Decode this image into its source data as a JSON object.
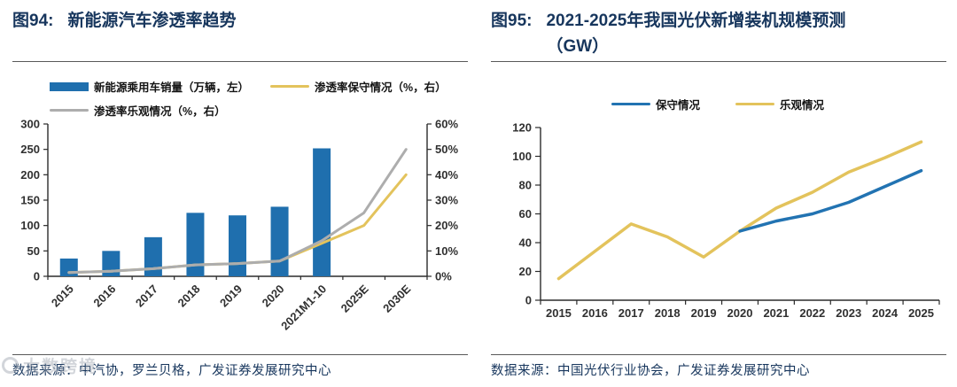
{
  "watermark": {
    "text": "大数跨境"
  },
  "figures": [
    {
      "label": "图94:",
      "title": "新能源汽车渗透率趋势",
      "source": "数据来源：中汽协，罗兰贝格，广发证券发展研究中心"
    },
    {
      "label": "图95:",
      "title": "2021-2025年我国光伏新增装机规模预测（GW）",
      "source": "数据来源：中国光伏行业协会，广发证券发展研究中心"
    }
  ],
  "chart_data": [
    {
      "type": "bar+line",
      "title": "新能源汽车渗透率趋势",
      "categories": [
        "2015",
        "2016",
        "2017",
        "2018",
        "2019",
        "2020",
        "2021M1-10",
        "2025E",
        "2030E"
      ],
      "bar_series": {
        "name": "新能源乘用车销量（万辆，左）",
        "axis": "left",
        "color": "#1f6fae",
        "values": [
          35,
          50,
          77,
          125,
          120,
          137,
          252,
          null,
          null
        ]
      },
      "line_series": [
        {
          "name": "渗透率保守情况（%，右）",
          "axis": "right",
          "color": "#e3c35c",
          "values": [
            1.5,
            2,
            3,
            4.5,
            5,
            6,
            13,
            20,
            40
          ]
        },
        {
          "name": "渗透率乐观情况（%，右）",
          "axis": "right",
          "color": "#adadad",
          "values": [
            1.5,
            2,
            3,
            4.5,
            5,
            6,
            14,
            25,
            50
          ]
        }
      ],
      "left_axis": {
        "min": 0,
        "max": 300,
        "ticks": [
          0,
          50,
          100,
          150,
          200,
          250,
          300
        ]
      },
      "right_axis": {
        "min": 0,
        "max": 60,
        "ticks": [
          "0%",
          "10%",
          "20%",
          "30%",
          "40%",
          "50%",
          "60%"
        ]
      },
      "legend_position": "top-left",
      "grid": false
    },
    {
      "type": "line",
      "title": "2021-2025年我国光伏新增装机规模预测（GW）",
      "categories": [
        "2015",
        "2016",
        "2017",
        "2018",
        "2019",
        "2020",
        "2021",
        "2022",
        "2023",
        "2024",
        "2025"
      ],
      "series": [
        {
          "name": "乐观情况",
          "color": "#e3c35c",
          "values": [
            15,
            34,
            53,
            44,
            30,
            48,
            64,
            75,
            89,
            99,
            110
          ]
        },
        {
          "name": "保守情况",
          "color": "#2273b2",
          "values": [
            null,
            null,
            null,
            null,
            null,
            48,
            55,
            60,
            68,
            79,
            90
          ]
        }
      ],
      "legend_order": [
        "保守情况",
        "乐观情况"
      ],
      "y_axis": {
        "min": 0,
        "max": 120,
        "ticks": [
          0,
          20,
          40,
          60,
          80,
          100,
          120
        ]
      },
      "legend_position": "top-center",
      "grid": false
    }
  ]
}
